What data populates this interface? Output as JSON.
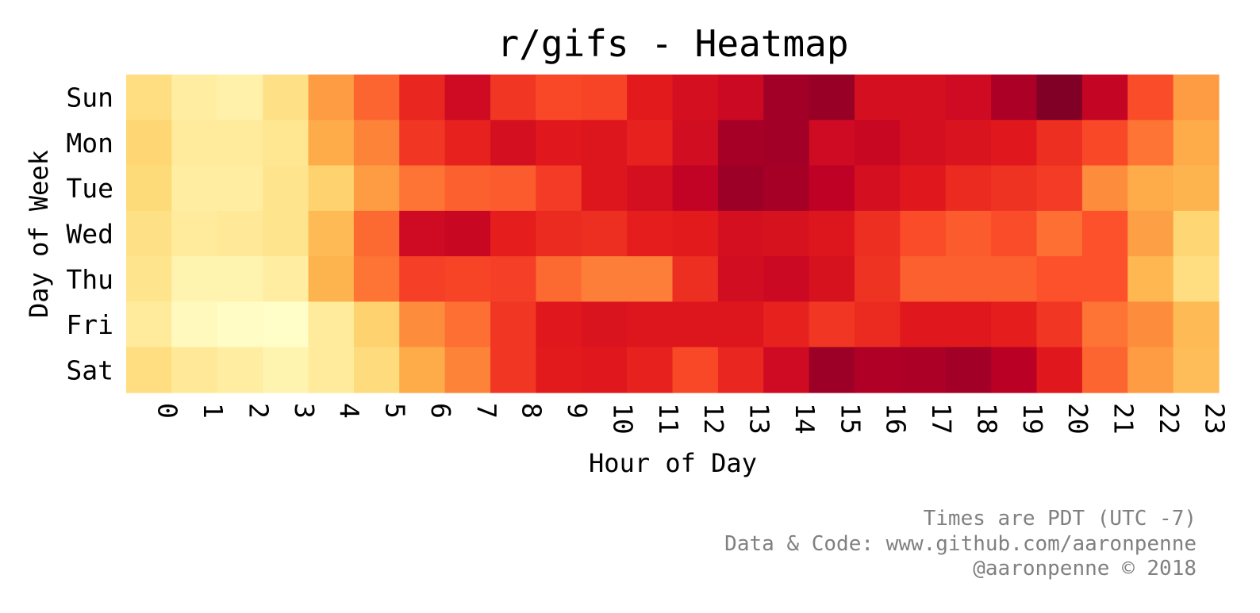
{
  "chart_data": {
    "type": "heatmap",
    "title": "r/gifs - Heatmap",
    "xlabel": "Hour of Day",
    "ylabel": "Day of Week",
    "x_categories": [
      "0",
      "1",
      "2",
      "3",
      "4",
      "5",
      "6",
      "7",
      "8",
      "9",
      "10",
      "11",
      "12",
      "13",
      "14",
      "15",
      "16",
      "17",
      "18",
      "19",
      "20",
      "21",
      "22",
      "23"
    ],
    "y_categories": [
      "Sun",
      "Mon",
      "Tue",
      "Wed",
      "Thu",
      "Fri",
      "Sat"
    ],
    "colormap": "YlOrRd",
    "color_range": [
      0,
      1
    ],
    "colorbar": false,
    "grid": false,
    "values": [
      [
        0.22,
        0.12,
        0.1,
        0.2,
        0.45,
        0.58,
        0.72,
        0.82,
        0.68,
        0.64,
        0.65,
        0.75,
        0.8,
        0.83,
        0.93,
        0.95,
        0.8,
        0.8,
        0.82,
        0.91,
        1.0,
        0.85,
        0.63,
        0.45
      ],
      [
        0.26,
        0.14,
        0.14,
        0.17,
        0.4,
        0.52,
        0.68,
        0.73,
        0.8,
        0.76,
        0.77,
        0.73,
        0.81,
        0.92,
        0.93,
        0.82,
        0.84,
        0.8,
        0.78,
        0.76,
        0.7,
        0.64,
        0.55,
        0.4
      ],
      [
        0.24,
        0.12,
        0.12,
        0.18,
        0.27,
        0.45,
        0.55,
        0.59,
        0.6,
        0.67,
        0.77,
        0.8,
        0.86,
        0.94,
        0.92,
        0.87,
        0.8,
        0.76,
        0.71,
        0.69,
        0.67,
        0.5,
        0.4,
        0.37
      ],
      [
        0.2,
        0.14,
        0.15,
        0.18,
        0.35,
        0.57,
        0.82,
        0.84,
        0.74,
        0.71,
        0.7,
        0.74,
        0.75,
        0.8,
        0.79,
        0.77,
        0.7,
        0.63,
        0.6,
        0.63,
        0.56,
        0.62,
        0.44,
        0.26
      ],
      [
        0.18,
        0.08,
        0.08,
        0.12,
        0.37,
        0.55,
        0.66,
        0.65,
        0.66,
        0.57,
        0.53,
        0.53,
        0.7,
        0.81,
        0.83,
        0.79,
        0.69,
        0.59,
        0.59,
        0.59,
        0.62,
        0.62,
        0.36,
        0.22
      ],
      [
        0.14,
        0.04,
        0.02,
        0.01,
        0.14,
        0.27,
        0.5,
        0.56,
        0.68,
        0.76,
        0.78,
        0.77,
        0.77,
        0.77,
        0.73,
        0.68,
        0.71,
        0.76,
        0.76,
        0.74,
        0.68,
        0.55,
        0.5,
        0.35
      ],
      [
        0.22,
        0.15,
        0.12,
        0.08,
        0.14,
        0.23,
        0.4,
        0.52,
        0.68,
        0.75,
        0.76,
        0.73,
        0.64,
        0.72,
        0.82,
        0.94,
        0.9,
        0.91,
        0.93,
        0.88,
        0.76,
        0.58,
        0.45,
        0.34
      ]
    ],
    "credits": [
      "Times are PDT (UTC -7)",
      "Data & Code: www.github.com/aaronpenne",
      "@aaronpenne © 2018"
    ]
  }
}
